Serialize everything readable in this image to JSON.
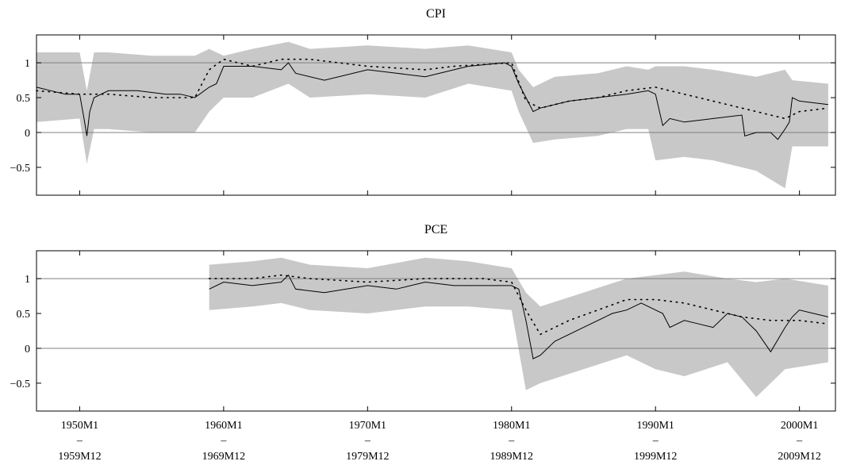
{
  "chart_data": [
    {
      "type": "line",
      "title": "CPI",
      "ylim": [
        -0.9,
        1.4
      ],
      "yticks": [
        -0.5,
        0,
        0.5,
        1
      ],
      "ytick_labels": [
        "−0.5",
        "0",
        "0.5",
        "1"
      ],
      "reference_lines": [
        0,
        1
      ],
      "grid": false,
      "colors": {
        "band": "#c8c8c8",
        "median": "#000000",
        "dotted": "#000000",
        "reference": "#808080"
      },
      "series": [
        {
          "role": "band_upper",
          "x": [
            1947.0,
            1950.0,
            1950.5,
            1951.0,
            1952.0,
            1955.0,
            1958.0,
            1959.0,
            1960.0,
            1962.0,
            1964.5,
            1966.0,
            1970.0,
            1974.0,
            1977.0,
            1980.0,
            1980.5,
            1981.5,
            1983.0,
            1986.0,
            1988.0,
            1989.5,
            1990.0,
            1992.0,
            1994.0,
            1997.0,
            1999.0,
            1999.5,
            2002.0
          ],
          "values": [
            1.15,
            1.15,
            0.6,
            1.15,
            1.15,
            1.1,
            1.1,
            1.2,
            1.1,
            1.2,
            1.3,
            1.2,
            1.25,
            1.2,
            1.25,
            1.15,
            0.9,
            0.65,
            0.8,
            0.85,
            0.95,
            0.9,
            0.95,
            0.95,
            0.9,
            0.8,
            0.9,
            0.75,
            0.7
          ]
        },
        {
          "role": "band_lower",
          "x": [
            1947.0,
            1950.0,
            1950.5,
            1951.0,
            1952.0,
            1955.0,
            1958.0,
            1959.0,
            1960.0,
            1962.0,
            1964.5,
            1966.0,
            1970.0,
            1974.0,
            1977.0,
            1980.0,
            1980.5,
            1981.5,
            1983.0,
            1986.0,
            1988.0,
            1989.5,
            1990.0,
            1992.0,
            1994.0,
            1997.0,
            1999.0,
            1999.5,
            2002.0
          ],
          "values": [
            0.15,
            0.2,
            -0.45,
            0.05,
            0.05,
            0.0,
            0.0,
            0.3,
            0.5,
            0.5,
            0.7,
            0.5,
            0.55,
            0.5,
            0.7,
            0.6,
            0.3,
            -0.15,
            -0.1,
            -0.05,
            0.05,
            0.05,
            -0.4,
            -0.35,
            -0.4,
            -0.55,
            -0.8,
            -0.2,
            -0.2
          ]
        },
        {
          "role": "median",
          "x": [
            1947.0,
            1948.0,
            1949.0,
            1950.0,
            1950.3,
            1950.5,
            1950.7,
            1951.0,
            1952.0,
            1954.0,
            1956.0,
            1957.0,
            1958.0,
            1959.0,
            1959.5,
            1960.0,
            1962.0,
            1964.0,
            1964.5,
            1965.0,
            1967.0,
            1970.0,
            1972.0,
            1974.0,
            1976.0,
            1977.0,
            1979.5,
            1980.0,
            1980.5,
            1981.0,
            1981.5,
            1982.0,
            1984.0,
            1986.0,
            1988.0,
            1989.5,
            1990.0,
            1990.5,
            1991.0,
            1992.0,
            1994.0,
            1996.0,
            1996.2,
            1997.0,
            1998.0,
            1998.5,
            1999.0,
            1999.3,
            1999.5,
            2000.0,
            2002.0
          ],
          "values": [
            0.65,
            0.6,
            0.55,
            0.55,
            0.2,
            -0.05,
            0.3,
            0.5,
            0.6,
            0.6,
            0.55,
            0.55,
            0.5,
            0.65,
            0.7,
            0.95,
            0.95,
            0.9,
            1.0,
            0.85,
            0.75,
            0.9,
            0.85,
            0.8,
            0.9,
            0.95,
            1.0,
            0.95,
            0.7,
            0.5,
            0.3,
            0.35,
            0.45,
            0.5,
            0.55,
            0.6,
            0.55,
            0.1,
            0.2,
            0.15,
            0.2,
            0.25,
            -0.05,
            0.0,
            0.0,
            -0.1,
            0.05,
            0.15,
            0.5,
            0.45,
            0.4
          ]
        },
        {
          "role": "dotted",
          "x": [
            1947.0,
            1950.0,
            1952.0,
            1955.0,
            1958.0,
            1959.0,
            1960.0,
            1962.0,
            1964.0,
            1966.0,
            1970.0,
            1974.0,
            1976.0,
            1980.0,
            1981.0,
            1982.0,
            1984.0,
            1986.0,
            1988.0,
            1990.0,
            1992.0,
            1994.0,
            1996.0,
            1998.0,
            1999.0,
            2000.0,
            2002.0
          ],
          "values": [
            0.6,
            0.55,
            0.55,
            0.5,
            0.5,
            0.9,
            1.05,
            0.95,
            1.05,
            1.05,
            0.95,
            0.9,
            0.95,
            1.0,
            0.45,
            0.35,
            0.45,
            0.5,
            0.6,
            0.65,
            0.55,
            0.45,
            0.35,
            0.25,
            0.2,
            0.3,
            0.35
          ]
        }
      ]
    },
    {
      "type": "line",
      "title": "PCE",
      "ylim": [
        -0.9,
        1.4
      ],
      "yticks": [
        -0.5,
        0,
        0.5,
        1
      ],
      "ytick_labels": [
        "−0.5",
        "0",
        "0.5",
        "1"
      ],
      "reference_lines": [
        0,
        1
      ],
      "grid": false,
      "colors": {
        "band": "#c8c8c8",
        "median": "#000000",
        "dotted": "#000000",
        "reference": "#808080"
      },
      "series": [
        {
          "role": "band_upper",
          "x": [
            1959.0,
            1962.0,
            1964.0,
            1966.0,
            1970.0,
            1974.0,
            1977.0,
            1980.0,
            1981.0,
            1982.0,
            1985.0,
            1988.0,
            1990.0,
            1992.0,
            1995.0,
            1997.0,
            1999.0,
            2002.0
          ],
          "values": [
            1.2,
            1.25,
            1.3,
            1.2,
            1.15,
            1.3,
            1.25,
            1.15,
            0.8,
            0.6,
            0.8,
            1.0,
            1.05,
            1.1,
            1.0,
            0.95,
            1.0,
            0.9
          ]
        },
        {
          "role": "band_lower",
          "x": [
            1959.0,
            1962.0,
            1964.0,
            1966.0,
            1970.0,
            1974.0,
            1977.0,
            1980.0,
            1981.0,
            1982.0,
            1985.0,
            1988.0,
            1990.0,
            1992.0,
            1995.0,
            1997.0,
            1999.0,
            2002.0
          ],
          "values": [
            0.55,
            0.6,
            0.65,
            0.55,
            0.5,
            0.6,
            0.6,
            0.55,
            -0.6,
            -0.5,
            -0.3,
            -0.1,
            -0.3,
            -0.4,
            -0.2,
            -0.7,
            -0.3,
            -0.2
          ]
        },
        {
          "role": "median",
          "x": [
            1959.0,
            1960.0,
            1962.0,
            1964.0,
            1964.5,
            1965.0,
            1967.0,
            1970.0,
            1972.0,
            1974.0,
            1976.0,
            1978.0,
            1980.0,
            1980.5,
            1981.0,
            1981.5,
            1982.0,
            1983.0,
            1985.0,
            1987.0,
            1988.0,
            1989.0,
            1990.0,
            1990.5,
            1991.0,
            1992.0,
            1993.0,
            1994.0,
            1995.0,
            1996.0,
            1997.0,
            1997.5,
            1998.0,
            1999.0,
            1999.5,
            2000.0,
            2002.0
          ],
          "values": [
            0.85,
            0.95,
            0.9,
            0.95,
            1.05,
            0.85,
            0.8,
            0.9,
            0.85,
            0.95,
            0.9,
            0.9,
            0.9,
            0.85,
            0.4,
            -0.15,
            -0.1,
            0.1,
            0.3,
            0.5,
            0.55,
            0.65,
            0.55,
            0.5,
            0.3,
            0.4,
            0.35,
            0.3,
            0.5,
            0.45,
            0.25,
            0.1,
            -0.05,
            0.3,
            0.45,
            0.55,
            0.45
          ]
        },
        {
          "role": "dotted",
          "x": [
            1959.0,
            1962.0,
            1964.0,
            1966.0,
            1970.0,
            1974.0,
            1978.0,
            1980.0,
            1981.0,
            1982.0,
            1984.0,
            1986.0,
            1988.0,
            1990.0,
            1992.0,
            1994.0,
            1996.0,
            1998.0,
            2000.0,
            2002.0
          ],
          "values": [
            1.0,
            1.0,
            1.05,
            1.0,
            0.95,
            1.0,
            1.0,
            0.95,
            0.55,
            0.2,
            0.4,
            0.55,
            0.7,
            0.7,
            0.65,
            0.55,
            0.45,
            0.4,
            0.4,
            0.35
          ]
        }
      ]
    }
  ],
  "xaxis": {
    "xlim": [
      1947.0,
      2002.5
    ],
    "ticks": [
      {
        "x": 1950,
        "line1": "1950M1",
        "dash": "–",
        "line2": "1959M12"
      },
      {
        "x": 1960,
        "line1": "1960M1",
        "dash": "–",
        "line2": "1969M12"
      },
      {
        "x": 1970,
        "line1": "1970M1",
        "dash": "–",
        "line2": "1979M12"
      },
      {
        "x": 1980,
        "line1": "1980M1",
        "dash": "–",
        "line2": "1989M12"
      },
      {
        "x": 1990,
        "line1": "1990M1",
        "dash": "–",
        "line2": "1999M12"
      },
      {
        "x": 2000,
        "line1": "2000M1",
        "dash": "–",
        "line2": "2009M12"
      }
    ]
  }
}
